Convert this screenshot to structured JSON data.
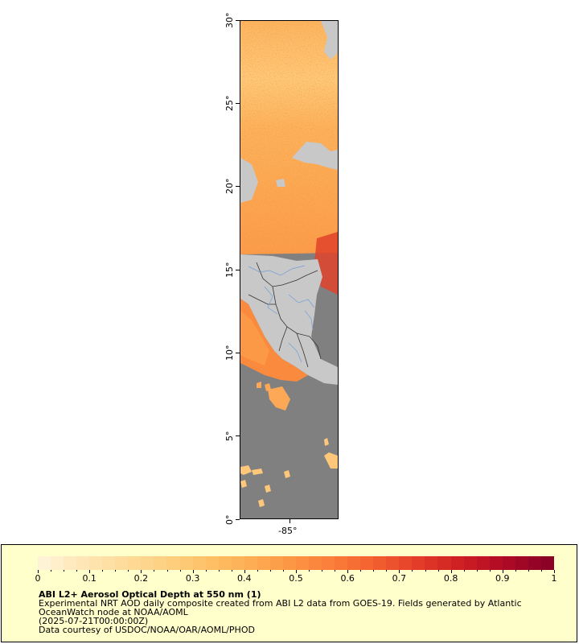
{
  "map": {
    "y_axis_labels": [
      "30°",
      "25°",
      "20°",
      "15°",
      "10°",
      "5°",
      "0°"
    ],
    "x_axis_labels": [
      "-85°"
    ],
    "colors": {
      "land": "#c8c8c8",
      "no_data": "#808080",
      "borders": "#333333",
      "rivers": "#6f9fd8"
    }
  },
  "colorbar": {
    "tick_labels": [
      "0",
      "0.1",
      "0.2",
      "0.3",
      "0.4",
      "0.5",
      "0.6",
      "0.7",
      "0.8",
      "0.9",
      "1"
    ],
    "range": [
      0,
      1
    ],
    "colors": [
      "#fff3d6",
      "#ffe5b3",
      "#fedb98",
      "#fecf7e",
      "#febf65",
      "#fdac52",
      "#fc9344",
      "#fa7a38",
      "#f15c2f",
      "#e23a28",
      "#cc1d22",
      "#ae0a25",
      "#8a0226"
    ]
  },
  "legend": {
    "title": "ABI L2+ Aerosol Optical Depth at 550 nm (1)",
    "line1": "Experimental NRT AOD daily composite created from ABI L2 data from GOES-19. Fields generated by Atlantic",
    "line2": "OceanWatch node at NOAA/AOML",
    "line3": "(2025-07-21T00:00:00Z)",
    "line4": "Data courtesy of USDOC/NOAA/OAR/AOML/PHOD"
  }
}
